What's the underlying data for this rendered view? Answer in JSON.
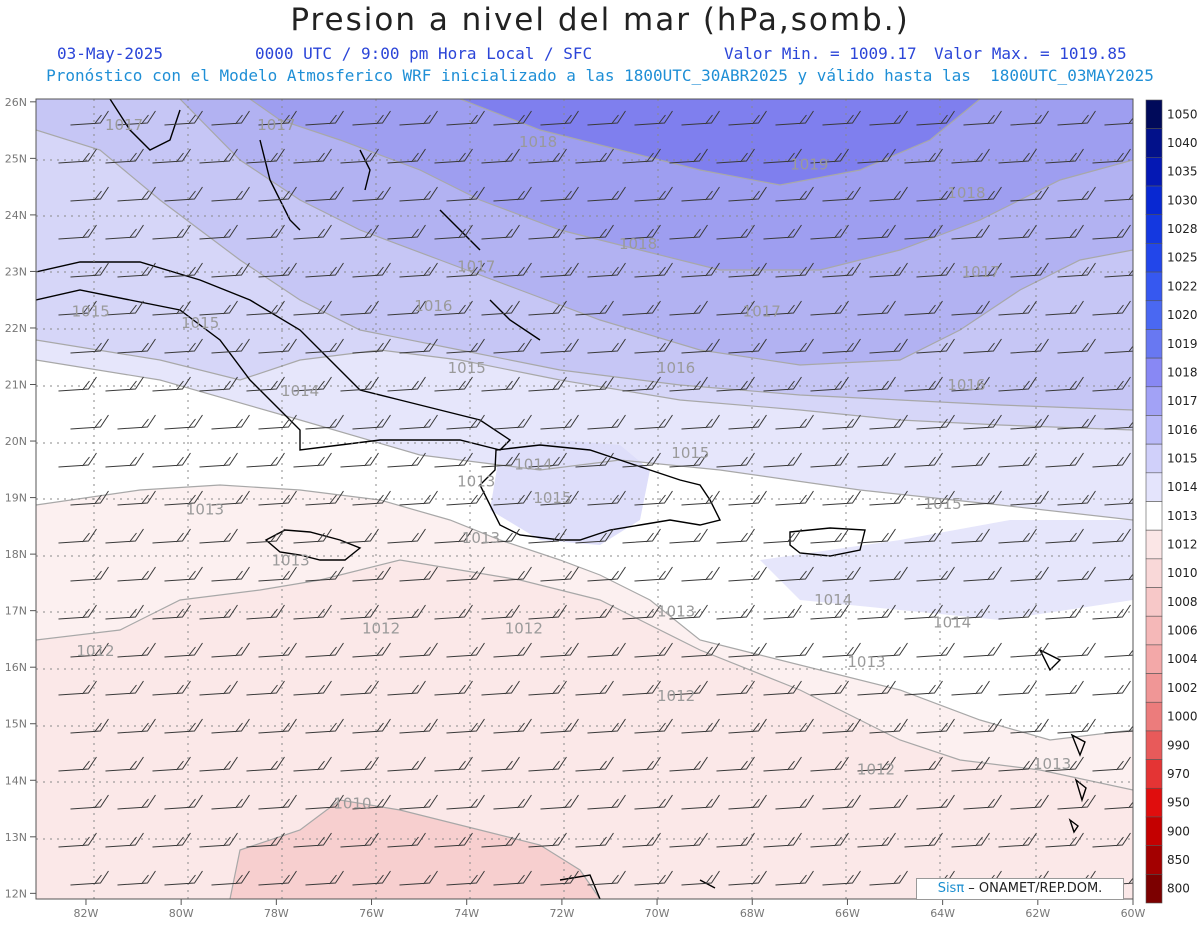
{
  "header": {
    "title": "Presion a nivel del mar (hPa,somb.)",
    "date": "03-May-2025",
    "time": "0000 UTC / 9:00 pm Hora Local / SFC",
    "min_label": "Valor Min. = 1009.17",
    "max_label": "Valor Max. = 1019.85",
    "model_line": "Pronóstico con el Modelo Atmosferico WRF inicializado a las 1800UTC_30ABR2025 y válido hasta las  1800UTC_03MAY2025"
  },
  "map": {
    "lat_labels": [
      "26N",
      "25N",
      "24N",
      "23N",
      "22N",
      "21N",
      "20N",
      "19N",
      "18N",
      "17N",
      "16N",
      "15N",
      "14N",
      "13N",
      "12N"
    ],
    "lon_labels": [
      "82W",
      "80W",
      "78W",
      "76W",
      "74W",
      "72W",
      "70W",
      "68W",
      "66W",
      "64W",
      "62W",
      "60W"
    ],
    "contour_labels": [
      {
        "text": "1017",
        "lon": -81.2,
        "lat": 25.5
      },
      {
        "text": "1017",
        "lon": -78.0,
        "lat": 25.5
      },
      {
        "text": "1018",
        "lon": -72.5,
        "lat": 25.2
      },
      {
        "text": "1019",
        "lon": -66.8,
        "lat": 24.8
      },
      {
        "text": "1018",
        "lon": -63.5,
        "lat": 24.3
      },
      {
        "text": "1018",
        "lon": -70.4,
        "lat": 23.4
      },
      {
        "text": "1017",
        "lon": -73.8,
        "lat": 23.0
      },
      {
        "text": "1017",
        "lon": -63.2,
        "lat": 22.9
      },
      {
        "text": "1017",
        "lon": -67.8,
        "lat": 22.2
      },
      {
        "text": "1016",
        "lon": -74.7,
        "lat": 22.3
      },
      {
        "text": "1015",
        "lon": -81.9,
        "lat": 22.2
      },
      {
        "text": "1015",
        "lon": -79.6,
        "lat": 22.0
      },
      {
        "text": "1016",
        "lon": -69.6,
        "lat": 21.2
      },
      {
        "text": "1015",
        "lon": -74.0,
        "lat": 21.2
      },
      {
        "text": "1016",
        "lon": -63.5,
        "lat": 20.9
      },
      {
        "text": "1014",
        "lon": -77.5,
        "lat": 20.8
      },
      {
        "text": "1015",
        "lon": -69.3,
        "lat": 19.7
      },
      {
        "text": "1014",
        "lon": -72.6,
        "lat": 19.5
      },
      {
        "text": "1013",
        "lon": -73.8,
        "lat": 19.2
      },
      {
        "text": "1015",
        "lon": -72.2,
        "lat": 18.9
      },
      {
        "text": "1015",
        "lon": -64.0,
        "lat": 18.8
      },
      {
        "text": "1013",
        "lon": -79.5,
        "lat": 18.7
      },
      {
        "text": "1013",
        "lon": -73.7,
        "lat": 18.2
      },
      {
        "text": "1013",
        "lon": -77.7,
        "lat": 17.8
      },
      {
        "text": "1014",
        "lon": -66.3,
        "lat": 17.1
      },
      {
        "text": "1013",
        "lon": -69.6,
        "lat": 16.9
      },
      {
        "text": "1014",
        "lon": -63.8,
        "lat": 16.7
      },
      {
        "text": "1012",
        "lon": -75.8,
        "lat": 16.6
      },
      {
        "text": "1012",
        "lon": -72.8,
        "lat": 16.6
      },
      {
        "text": "1012",
        "lon": -81.8,
        "lat": 16.2
      },
      {
        "text": "1013",
        "lon": -65.6,
        "lat": 16.0
      },
      {
        "text": "1012",
        "lon": -69.6,
        "lat": 15.4
      },
      {
        "text": "1013",
        "lon": -61.7,
        "lat": 14.2
      },
      {
        "text": "1012",
        "lon": -65.4,
        "lat": 14.1
      },
      {
        "text": "1010",
        "lon": -76.4,
        "lat": 13.5
      }
    ]
  },
  "colorbar": {
    "levels": [
      "1050",
      "1040",
      "1035",
      "1030",
      "1028",
      "1025",
      "1022",
      "1020",
      "1019",
      "1018",
      "1017",
      "1016",
      "1015",
      "1014",
      "1013",
      "1012",
      "1010",
      "1008",
      "1006",
      "1004",
      "1002",
      "1000",
      "990",
      "970",
      "950",
      "900",
      "850",
      "800"
    ],
    "colors": [
      "#000a5a",
      "#02118a",
      "#0418b4",
      "#0828d2",
      "#1438e0",
      "#2246ea",
      "#3658f0",
      "#4a68f2",
      "#6878f2",
      "#8888f4",
      "#a2a2f6",
      "#babaf8",
      "#d0d0fa",
      "#e4e4fc",
      "#ffffff",
      "#fbe6e6",
      "#f9d8d8",
      "#f7c8c8",
      "#f5b8b8",
      "#f3a8a8",
      "#f09696",
      "#ec7c7c",
      "#e85a5a",
      "#e43434",
      "#e00d0d",
      "#c40000",
      "#a30000",
      "#7c0000"
    ]
  },
  "credit": {
    "brand": "Sisπ",
    "org": " – ONAMET/REP.DOM."
  }
}
